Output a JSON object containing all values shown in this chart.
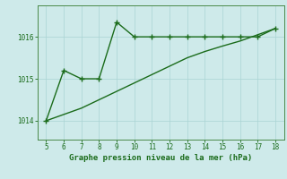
{
  "x_data": [
    5,
    6,
    7,
    8,
    9,
    10,
    11,
    12,
    13,
    14,
    15,
    16,
    17,
    18
  ],
  "y_jagged": [
    1014.0,
    1015.2,
    1015.0,
    1015.0,
    1016.35,
    1016.0,
    1016.0,
    1016.0,
    1016.0,
    1016.0,
    1016.0,
    1016.0,
    1016.0,
    1016.2
  ],
  "y_smooth": [
    1014.0,
    1014.15,
    1014.3,
    1014.5,
    1014.7,
    1014.9,
    1015.1,
    1015.3,
    1015.5,
    1015.65,
    1015.78,
    1015.9,
    1016.05,
    1016.2
  ],
  "line_color": "#1a6b1a",
  "bg_color": "#ceeaea",
  "xlabel": "Graphe pression niveau de la mer (hPa)",
  "xlim": [
    4.5,
    18.5
  ],
  "ylim": [
    1013.55,
    1016.75
  ],
  "yticks": [
    1014,
    1015,
    1016
  ],
  "xticks": [
    5,
    6,
    7,
    8,
    9,
    10,
    11,
    12,
    13,
    14,
    15,
    16,
    17,
    18
  ],
  "marker": "+",
  "marker_size": 4,
  "line_width": 1.0,
  "grid_color": "#aad4d4",
  "spine_color": "#4a8a4a"
}
